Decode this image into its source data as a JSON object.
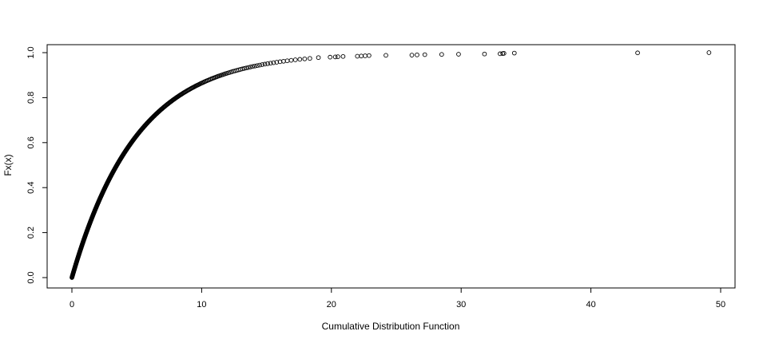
{
  "chart_data": {
    "type": "scatter",
    "title": "",
    "xlabel": "Cumulative Distribution Function",
    "ylabel": "Fx(x)",
    "xlim": [
      -2,
      51
    ],
    "ylim": [
      -0.04,
      1.04
    ],
    "x_ticks": [
      0,
      10,
      20,
      30,
      40,
      50
    ],
    "x_tick_labels": [
      "0",
      "10",
      "20",
      "30",
      "40",
      "50"
    ],
    "y_ticks": [
      0.0,
      0.2,
      0.4,
      0.6,
      0.8,
      1.0
    ],
    "y_tick_labels": [
      "0.0",
      "0.2",
      "0.4",
      "0.6",
      "0.8",
      "1.0"
    ],
    "grid": false,
    "legend": "none",
    "marker": "open-circle",
    "dense_curve": {
      "description": "empirical CDF points densely packed along an exponential-shaped curve",
      "approx_rate": 0.2,
      "x_range": [
        0,
        18.5
      ],
      "point_count": 470
    },
    "sparse_points": {
      "x": [
        19.0,
        19.9,
        20.3,
        20.5,
        20.9,
        22.0,
        22.3,
        22.6,
        22.9,
        24.2,
        26.2,
        26.6,
        27.2,
        28.5,
        29.8,
        31.8,
        33.0,
        33.2,
        33.3,
        34.1,
        43.6,
        49.1
      ],
      "y": [
        0.978,
        0.98,
        0.981,
        0.982,
        0.983,
        0.984,
        0.985,
        0.986,
        0.987,
        0.988,
        0.989,
        0.99,
        0.991,
        0.992,
        0.993,
        0.994,
        0.995,
        0.996,
        0.997,
        0.998,
        0.999,
        1.0
      ]
    }
  }
}
